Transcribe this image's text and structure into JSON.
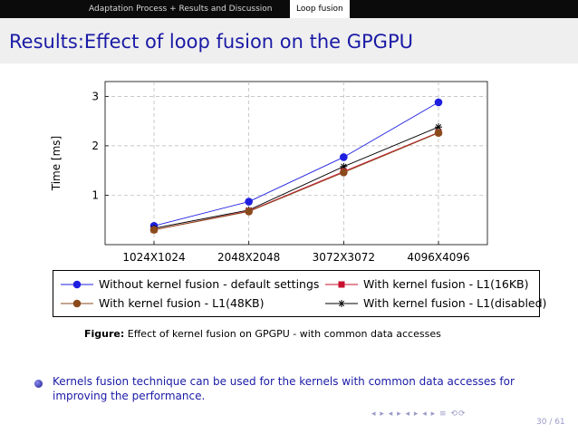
{
  "header": {
    "section": "Adaptation Process + Results and Discussion",
    "subsection": "Loop fusion"
  },
  "slide": {
    "title": "Results:Effect of loop fusion on the GPGPU",
    "caption_label": "Figure:",
    "caption_text": "Effect of kernel fusion on GPGPU - with common data accesses",
    "bullet": "Kernels fusion technique can be used for the kernels with common data accesses for improving the performance.",
    "nav_symbols": "◂ ▸ ◂ ▸ ◂ ▸ ◂ ▸ ≡ ⟲⟳",
    "page": "30 / 61"
  },
  "colors": {
    "blue": "#1f1fe0",
    "red": "#c8102e",
    "brown": "#8b4a1c",
    "black": "#000000",
    "accent": "#1a1aa6"
  },
  "chart_data": {
    "type": "line",
    "categories": [
      "1024X1024",
      "2048X2048",
      "3072X3072",
      "4096X4096"
    ],
    "ylabel": "Time [ms]",
    "xlabel": "",
    "ylim": [
      0,
      3.3
    ],
    "yticks": [
      1,
      2,
      3
    ],
    "grid": true,
    "legend_position": "bottom",
    "series": [
      {
        "name": "Without kernel fusion - default settings",
        "values": [
          0.38,
          0.87,
          1.77,
          2.88
        ],
        "marker": "circle",
        "color": "#1f1fe0"
      },
      {
        "name": "With kernel fusion - L1(16KB)",
        "values": [
          0.3,
          0.68,
          1.48,
          2.27
        ],
        "marker": "square",
        "color": "#c8102e"
      },
      {
        "name": "With kernel fusion - L1(48KB)",
        "values": [
          0.3,
          0.67,
          1.46,
          2.26
        ],
        "marker": "circle",
        "color": "#8b4a1c"
      },
      {
        "name": "With kernel fusion - L1(disabled)",
        "values": [
          0.33,
          0.7,
          1.58,
          2.38
        ],
        "marker": "star",
        "color": "#000000"
      }
    ]
  }
}
